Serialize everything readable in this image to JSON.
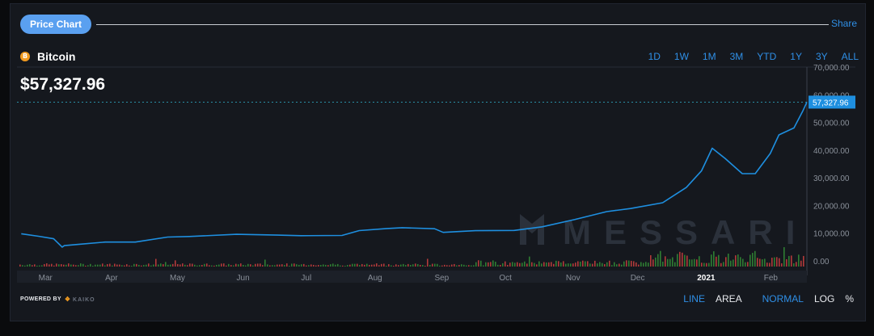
{
  "header": {
    "tab_label": "Price Chart",
    "share_label": "Share"
  },
  "asset": {
    "name": "Bitcoin",
    "icon": "bitcoin-icon",
    "icon_glyph": "B",
    "price": "$57,327.96"
  },
  "ranges": [
    "1D",
    "1W",
    "1M",
    "3M",
    "YTD",
    "1Y",
    "3Y",
    "ALL"
  ],
  "active_range": "1Y",
  "footer": {
    "powered_by": "POWERED BY",
    "provider": "KAIKO",
    "toggles": [
      {
        "label": "LINE",
        "active": true
      },
      {
        "label": "AREA",
        "active": false
      },
      {
        "label": "NORMAL",
        "active": true
      },
      {
        "label": "LOG",
        "active": false
      },
      {
        "label": "%",
        "active": false
      }
    ]
  },
  "colors": {
    "line": "#1e8fe0",
    "accent": "#2f8fe6",
    "vol_up": "#2e7d32",
    "vol_down": "#b23a3a"
  },
  "watermark": "MESSARI",
  "chart_data": {
    "type": "line",
    "series": [
      {
        "x": [
          "2020-02-22",
          "2020-03-01",
          "2020-03-08",
          "2020-03-12",
          "2020-03-13",
          "2020-03-20",
          "2020-04-01",
          "2020-04-15",
          "2020-04-30",
          "2020-05-10",
          "2020-06-01",
          "2020-06-20",
          "2020-07-01",
          "2020-07-20",
          "2020-07-28",
          "2020-08-10",
          "2020-08-17",
          "2020-09-01",
          "2020-09-05",
          "2020-09-20",
          "2020-10-08",
          "2020-10-21",
          "2020-11-05",
          "2020-11-20",
          "2020-12-01",
          "2020-12-16",
          "2020-12-20",
          "2020-12-27",
          "2021-01-03",
          "2021-01-08",
          "2021-01-14",
          "2021-01-22",
          "2021-01-28",
          "2021-02-04",
          "2021-02-08",
          "2021-02-15",
          "2021-02-19",
          "2021-02-21"
        ],
        "y": [
          9800,
          8900,
          8000,
          5000,
          5500,
          6000,
          6800,
          6800,
          8600,
          8800,
          9600,
          9300,
          9100,
          9200,
          10950,
          11700,
          12000,
          11600,
          10300,
          10900,
          11000,
          12300,
          14900,
          17800,
          18900,
          21000,
          23000,
          26500,
          32500,
          40700,
          37000,
          31500,
          31500,
          38800,
          45500,
          48000,
          54000,
          57327.96
        ]
      }
    ],
    "x_ticks": [
      "Mar",
      "Apr",
      "May",
      "Jun",
      "Jul",
      "Aug",
      "Sep",
      "Oct",
      "Nov",
      "Dec",
      "2021",
      "Feb"
    ],
    "y_ticks": [
      "0.00",
      "10,000.00",
      "20,000.00",
      "30,000.00",
      "40,000.00",
      "50,000.00",
      "60,000.00",
      "70,000.00"
    ],
    "ylim": [
      0,
      70000
    ],
    "last_value_label": "57,327.96",
    "volume": true
  }
}
